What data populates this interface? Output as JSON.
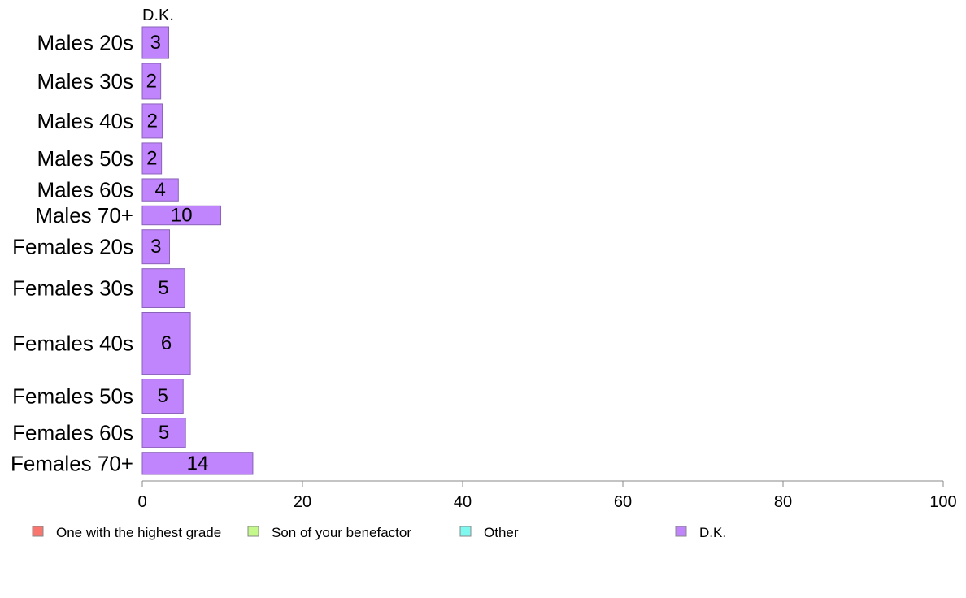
{
  "chart_data": {
    "type": "bar",
    "orientation": "horizontal",
    "stacked": true,
    "panel_title": "D.K.",
    "categories": [
      "Males 20s",
      "Males 30s",
      "Males 40s",
      "Males 50s",
      "Males 60s",
      "Males 70+",
      "Females 20s",
      "Females 30s",
      "Females 40s",
      "Females 50s",
      "Females 60s",
      "Females 70+"
    ],
    "bar_weights": [
      40,
      45,
      43,
      39,
      28,
      24,
      43,
      49,
      78,
      43,
      37,
      28
    ],
    "series": [
      {
        "name": "One with the highest grade",
        "color": "#f8766d",
        "values": [
          0,
          0,
          0,
          0,
          0,
          0,
          0,
          0,
          0,
          0,
          0,
          0
        ]
      },
      {
        "name": "Son of your benefactor",
        "color": "#c4f88a",
        "values": [
          0,
          0,
          0,
          0,
          0,
          0,
          0,
          0,
          0,
          0,
          0,
          0
        ]
      },
      {
        "name": "Other",
        "color": "#7ff8f0",
        "values": [
          0,
          0,
          0,
          0,
          0,
          0,
          0,
          0,
          0,
          0,
          0,
          0
        ]
      },
      {
        "name": "D.K.",
        "color": "#c084fc",
        "values": [
          3.3,
          2.3,
          2.5,
          2.4,
          4.5,
          9.8,
          3.4,
          5.3,
          6.0,
          5.1,
          5.4,
          13.8
        ],
        "labels": [
          "3",
          "2",
          "2",
          "2",
          "4",
          "10",
          "3",
          "5",
          "6",
          "5",
          "5",
          "14"
        ]
      }
    ],
    "xlim": [
      0,
      100
    ],
    "xticks": [
      "0",
      "20",
      "40",
      "60",
      "80",
      "100"
    ],
    "grid": false,
    "legend_position": "bottom"
  }
}
